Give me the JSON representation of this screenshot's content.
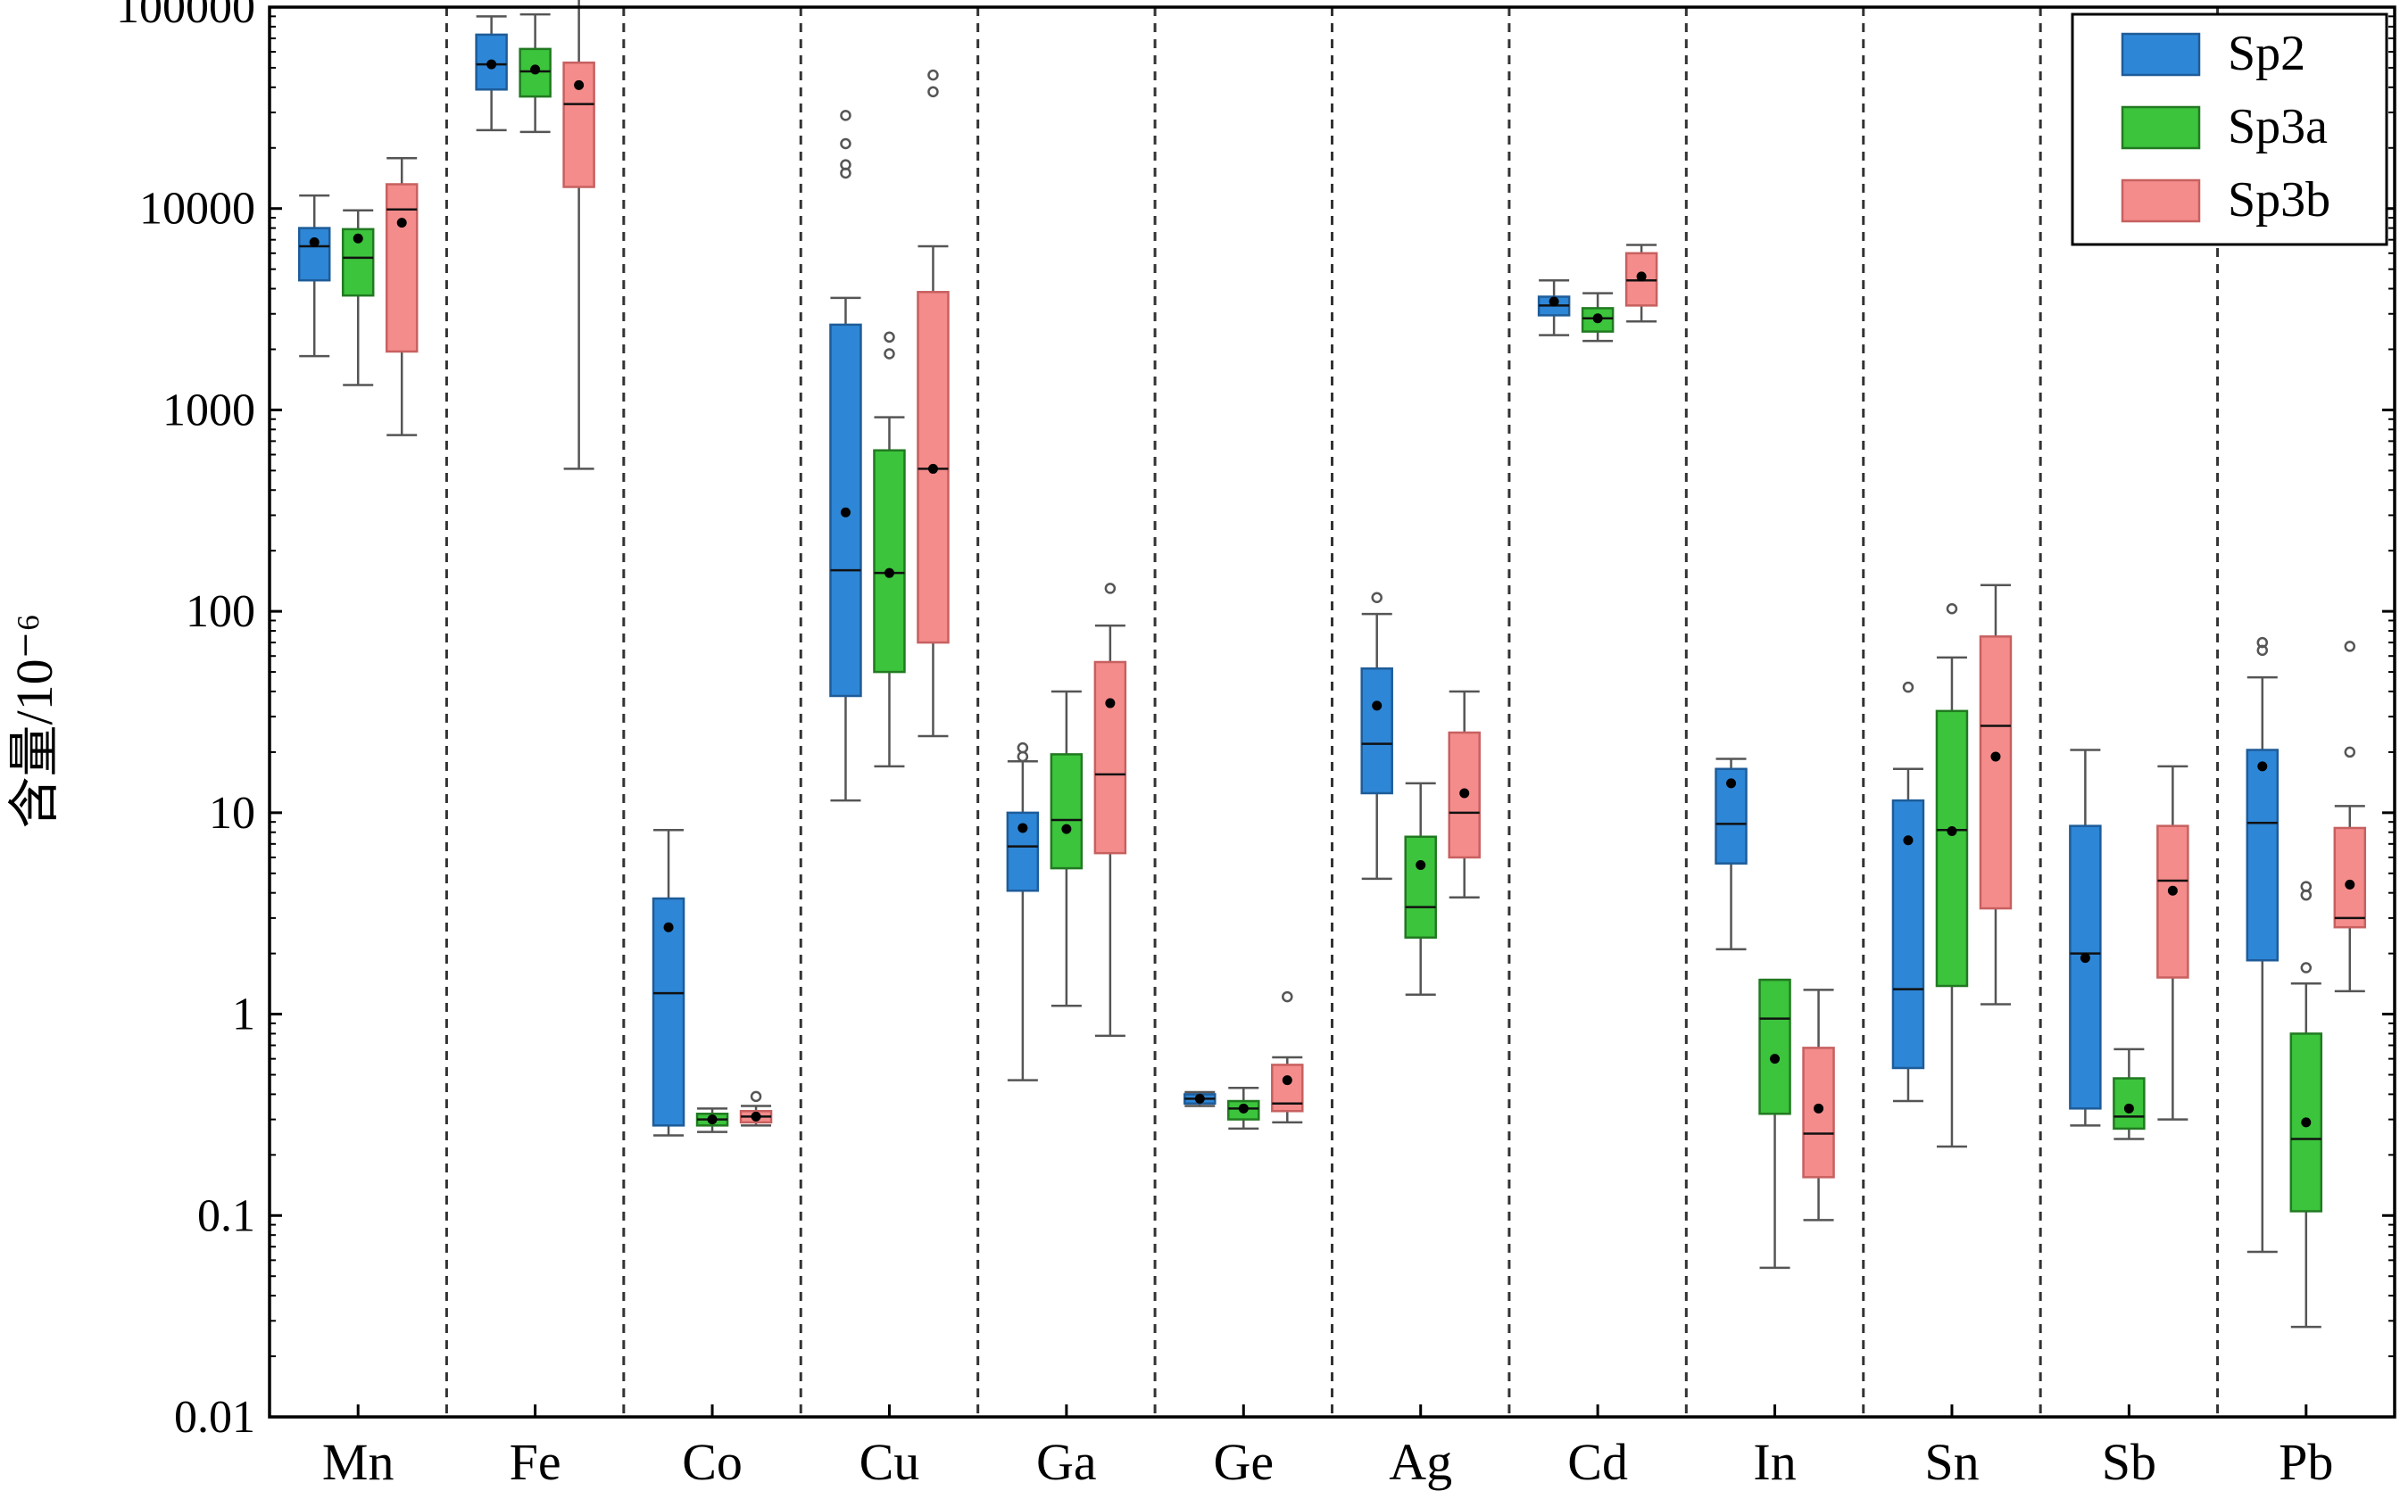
{
  "chart_data": {
    "type": "box",
    "title": "",
    "xlabel": "",
    "ylabel": "含量/10⁻⁶",
    "y_scale": "log",
    "ylim": [
      0.01,
      100000
    ],
    "y_ticks": [
      "0.01",
      "0.1",
      "1",
      "10",
      "100",
      "1000",
      "10000",
      "100000"
    ],
    "grid": false,
    "separators": "dashed vertical lines between element groups",
    "legend_position": "top-right",
    "categories": [
      "Mn",
      "Fe",
      "Co",
      "Cu",
      "Ga",
      "Ge",
      "Ag",
      "Cd",
      "In",
      "Sn",
      "Sb",
      "Pb"
    ],
    "series": [
      {
        "name": "Sp2",
        "color": "#2e86d6",
        "boxes": [
          {
            "whislo": 1850,
            "q1": 4400,
            "med": 6500,
            "q3": 8000,
            "whishi": 11600,
            "mean": 6800,
            "fliers": []
          },
          {
            "whislo": 24500,
            "q1": 39000,
            "med": 52000,
            "q3": 73000,
            "whishi": 90000,
            "mean": 52000,
            "fliers": []
          },
          {
            "whislo": 0.25,
            "q1": 0.28,
            "med": 1.27,
            "q3": 3.75,
            "whishi": 8.2,
            "mean": 2.7,
            "fliers": []
          },
          {
            "whislo": 11.5,
            "q1": 38,
            "med": 160,
            "q3": 2650,
            "whishi": 3600,
            "mean": 310,
            "fliers": [
              15000,
              16500,
              21000,
              29000
            ]
          },
          {
            "whislo": 0.47,
            "q1": 4.1,
            "med": 6.8,
            "q3": 10,
            "whishi": 18,
            "mean": 8.4,
            "fliers": [
              19,
              21
            ]
          },
          {
            "whislo": 0.35,
            "q1": 0.36,
            "med": 0.38,
            "q3": 0.4,
            "whishi": 0.41,
            "mean": 0.38,
            "fliers": []
          },
          {
            "whislo": 4.7,
            "q1": 12.5,
            "med": 22,
            "q3": 52,
            "whishi": 97,
            "mean": 34,
            "fliers": [
              117
            ]
          },
          {
            "whislo": 2350,
            "q1": 2950,
            "med": 3300,
            "q3": 3650,
            "whishi": 4400,
            "mean": 3450,
            "fliers": []
          },
          {
            "whislo": 2.1,
            "q1": 5.6,
            "med": 8.8,
            "q3": 16.5,
            "whishi": 18.5,
            "mean": 14,
            "fliers": []
          },
          {
            "whislo": 0.37,
            "q1": 0.54,
            "med": 1.33,
            "q3": 11.5,
            "whishi": 16.5,
            "mean": 7.3,
            "fliers": [
              42
            ]
          },
          {
            "whislo": 0.28,
            "q1": 0.34,
            "med": 2.0,
            "q3": 8.6,
            "whishi": 20.5,
            "mean": 1.9,
            "fliers": []
          },
          {
            "whislo": 0.066,
            "q1": 1.85,
            "med": 8.9,
            "q3": 20.5,
            "whishi": 47,
            "mean": 17,
            "fliers": [
              64,
              70
            ]
          }
        ]
      },
      {
        "name": "Sp3a",
        "color": "#3cc43c",
        "boxes": [
          {
            "whislo": 1330,
            "q1": 3700,
            "med": 5700,
            "q3": 7900,
            "whishi": 9800,
            "mean": 7100,
            "fliers": []
          },
          {
            "whislo": 24000,
            "q1": 36000,
            "med": 48000,
            "q3": 62000,
            "whishi": 92000,
            "mean": 49000,
            "fliers": []
          },
          {
            "whislo": 0.26,
            "q1": 0.28,
            "med": 0.3,
            "q3": 0.32,
            "whishi": 0.34,
            "mean": 0.3,
            "fliers": []
          },
          {
            "whislo": 17,
            "q1": 50,
            "med": 155,
            "q3": 630,
            "whishi": 920,
            "mean": 155,
            "fliers": [
              1900,
              2300
            ]
          },
          {
            "whislo": 1.1,
            "q1": 5.3,
            "med": 9.2,
            "q3": 19.5,
            "whishi": 40,
            "mean": 8.3,
            "fliers": []
          },
          {
            "whislo": 0.27,
            "q1": 0.3,
            "med": 0.34,
            "q3": 0.37,
            "whishi": 0.43,
            "mean": 0.34,
            "fliers": []
          },
          {
            "whislo": 1.25,
            "q1": 2.4,
            "med": 3.4,
            "q3": 7.6,
            "whishi": 14,
            "mean": 5.5,
            "fliers": []
          },
          {
            "whislo": 2200,
            "q1": 2450,
            "med": 2850,
            "q3": 3200,
            "whishi": 3800,
            "mean": 2850,
            "fliers": []
          },
          {
            "whislo": 0.055,
            "q1": 0.32,
            "med": 0.95,
            "q3": 1.48,
            "whishi": 1.48,
            "mean": 0.6,
            "fliers": []
          },
          {
            "whislo": 0.22,
            "q1": 1.38,
            "med": 8.2,
            "q3": 32,
            "whishi": 59,
            "mean": 8.1,
            "fliers": [
              103
            ]
          },
          {
            "whislo": 0.24,
            "q1": 0.27,
            "med": 0.31,
            "q3": 0.48,
            "whishi": 0.67,
            "mean": 0.34,
            "fliers": []
          },
          {
            "whislo": 0.028,
            "q1": 0.105,
            "med": 0.24,
            "q3": 0.8,
            "whishi": 1.42,
            "mean": 0.29,
            "fliers": [
              1.7,
              3.9,
              4.3
            ]
          }
        ]
      },
      {
        "name": "Sp3b",
        "color": "#f58c8c",
        "boxes": [
          {
            "whislo": 750,
            "q1": 1950,
            "med": 9900,
            "q3": 13200,
            "whishi": 17800,
            "mean": 8500,
            "fliers": []
          },
          {
            "whislo": 510,
            "q1": 12800,
            "med": 33000,
            "q3": 53000,
            "whishi": 112000,
            "mean": 41000,
            "fliers": []
          },
          {
            "whislo": 0.28,
            "q1": 0.29,
            "med": 0.31,
            "q3": 0.33,
            "whishi": 0.35,
            "mean": 0.31,
            "fliers": [
              0.39
            ]
          },
          {
            "whislo": 24,
            "q1": 70,
            "med": 510,
            "q3": 3850,
            "whishi": 6500,
            "mean": 510,
            "fliers": [
              38000,
              46000
            ]
          },
          {
            "whislo": 0.78,
            "q1": 6.3,
            "med": 15.5,
            "q3": 56,
            "whishi": 85,
            "mean": 35,
            "fliers": [
              130
            ]
          },
          {
            "whislo": 0.29,
            "q1": 0.33,
            "med": 0.36,
            "q3": 0.56,
            "whishi": 0.61,
            "mean": 0.47,
            "fliers": [
              1.22
            ]
          },
          {
            "whislo": 3.8,
            "q1": 6.0,
            "med": 10,
            "q3": 25,
            "whishi": 40,
            "mean": 12.5,
            "fliers": []
          },
          {
            "whislo": 2750,
            "q1": 3300,
            "med": 4400,
            "q3": 6000,
            "whishi": 6600,
            "mean": 4600,
            "fliers": []
          },
          {
            "whislo": 0.095,
            "q1": 0.155,
            "med": 0.255,
            "q3": 0.68,
            "whishi": 1.32,
            "mean": 0.34,
            "fliers": []
          },
          {
            "whislo": 1.12,
            "q1": 3.35,
            "med": 27,
            "q3": 75,
            "whishi": 135,
            "mean": 19,
            "fliers": []
          },
          {
            "whislo": 0.3,
            "q1": 1.52,
            "med": 4.6,
            "q3": 8.6,
            "whishi": 17,
            "mean": 4.1,
            "fliers": []
          },
          {
            "whislo": 1.3,
            "q1": 2.7,
            "med": 3.0,
            "q3": 8.4,
            "whishi": 10.8,
            "mean": 4.4,
            "fliers": [
              20,
              67
            ]
          }
        ]
      }
    ]
  }
}
